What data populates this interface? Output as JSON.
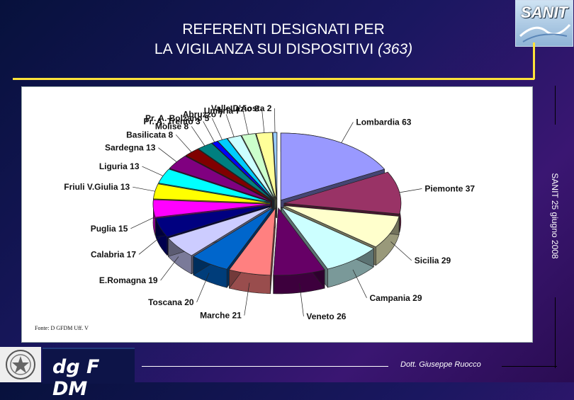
{
  "slide": {
    "title_line1": "REFERENTI DESIGNATI PER",
    "title_line2": "LA VIGILANZA SUI DISPOSITIVI",
    "title_count": "(363)",
    "logo_text": "SANIT",
    "side_text": "SANIT 25 giugno 2008",
    "source_note": "Fonte: D GFDM Uff. V",
    "brand": "dg F DM",
    "author": "Dott. Giuseppe Ruocco"
  },
  "chart_data": {
    "type": "pie",
    "title": "",
    "categories": [
      "Lombardia",
      "Piemonte",
      "Sicilia",
      "Campania",
      "Veneto",
      "Marche",
      "Toscana",
      "E.Romagna",
      "Calabria",
      "Puglia",
      "Friuli V.Giulia",
      "Liguria",
      "Sardegna",
      "Basilicata",
      "Molise",
      "Pr. A. Trento",
      "Pr. A. Bolzano",
      "Abruzzo",
      "Umbria",
      "Lazio",
      "Valle D'Aosta"
    ],
    "values": [
      63,
      37,
      29,
      29,
      26,
      21,
      20,
      19,
      17,
      15,
      13,
      13,
      13,
      8,
      8,
      3,
      5,
      7,
      7,
      8,
      2
    ],
    "labels": [
      "Lombardia 63",
      "Piemonte 37",
      "Sicilia 29",
      "Campania 29",
      "Veneto 26",
      "Marche 21",
      "Toscana 20",
      "E.Romagna 19",
      "Calabria 17",
      "Puglia 15",
      "Friuli V.Giulia 13",
      "Liguria 13",
      "Sardegna 13",
      "Basilicata 8",
      "Molise 8",
      "Pr. A. Trento 3",
      "Pr. A. Bolzano 5",
      "Abruzzo 7",
      "Umbria 7",
      "Lazio 8",
      "Valle D'Aosta 2"
    ],
    "colors": [
      "#9999ff",
      "#993366",
      "#ffffcc",
      "#ccffff",
      "#660066",
      "#ff8080",
      "#0066cc",
      "#ccccff",
      "#000080",
      "#ff00ff",
      "#ffff00",
      "#00ffff",
      "#800080",
      "#800000",
      "#008080",
      "#0000ff",
      "#00ccff",
      "#ccffff",
      "#ccffcc",
      "#ffff99",
      "#99ccff"
    ],
    "exploded": true,
    "style": "3d"
  }
}
